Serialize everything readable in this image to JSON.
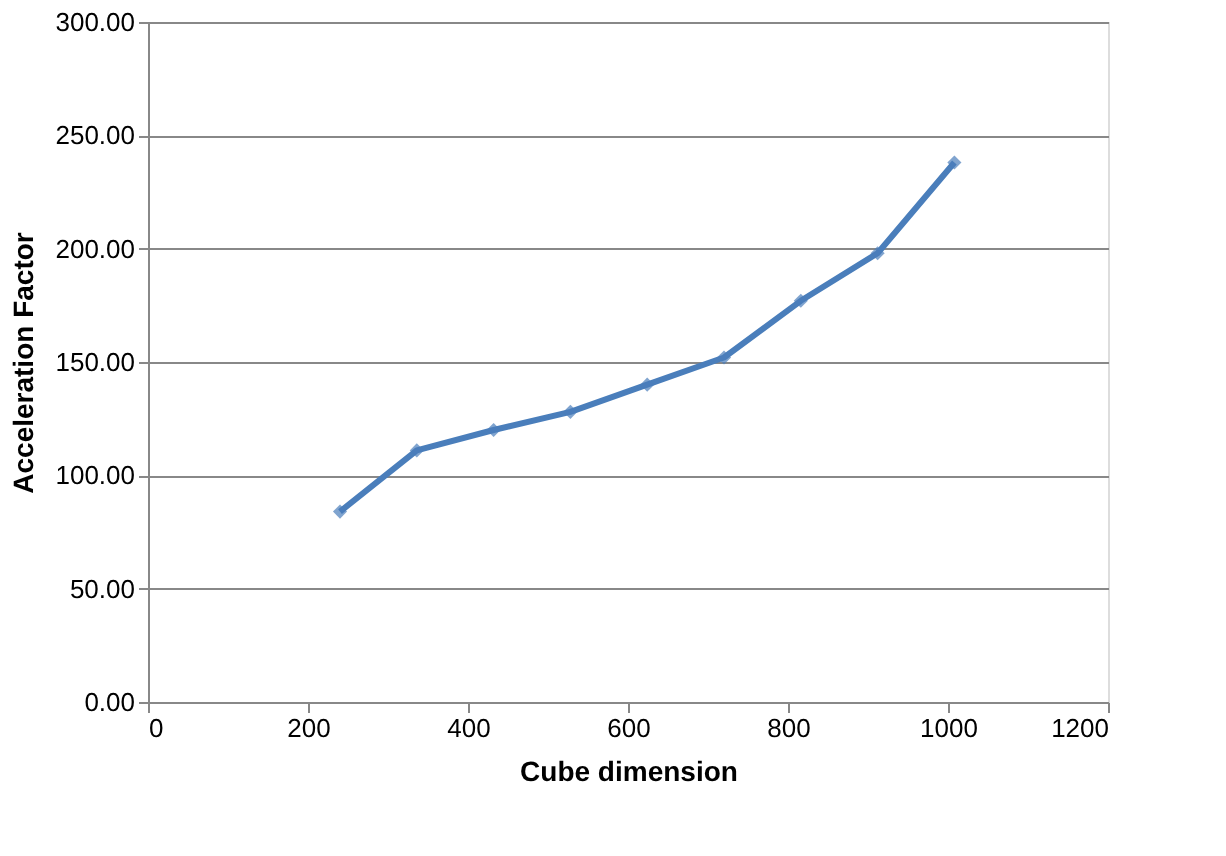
{
  "chart_data": {
    "type": "line",
    "xlabel": "Cube dimension",
    "ylabel": "Acceleration Factor",
    "x": [
      240,
      336,
      432,
      528,
      624,
      720,
      816,
      912,
      1008
    ],
    "series": [
      {
        "color": "#4a7ebb",
        "values": [
          84,
          111,
          120,
          128,
          140,
          152,
          177,
          198,
          238
        ]
      }
    ],
    "xlim": [
      0,
      1200
    ],
    "xticks": [
      0,
      200,
      400,
      600,
      800,
      1000,
      1200
    ],
    "ylim": [
      0,
      300
    ],
    "yticks": [
      {
        "value": 0,
        "label": "0.00"
      },
      {
        "value": 50,
        "label": "50.00"
      },
      {
        "value": 100,
        "label": "100.00"
      },
      {
        "value": 150,
        "label": "150.00"
      },
      {
        "value": 200,
        "label": "200.00"
      },
      {
        "value": 250,
        "label": "250.00"
      },
      {
        "value": 300,
        "label": "300.00"
      }
    ],
    "grid": "y",
    "marker": "diamond",
    "line_style": "solid"
  }
}
